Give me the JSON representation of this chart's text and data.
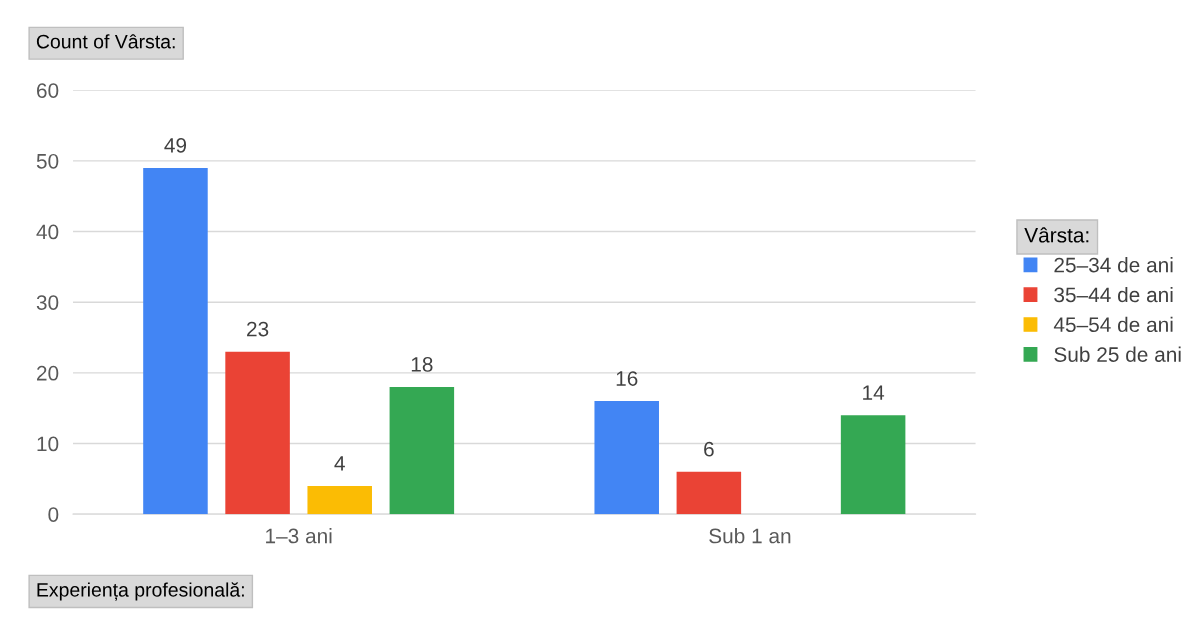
{
  "chart_data": {
    "type": "bar",
    "ylabel": "Count of Vârsta:",
    "xlabel": "Experiența profesională:",
    "legend_title": "Vârsta:",
    "categories": [
      "1–3 ani",
      "Sub 1 an"
    ],
    "series": [
      {
        "name": "25–34 de ani",
        "color": "#4285f4",
        "values": [
          49,
          16
        ]
      },
      {
        "name": "35–44 de ani",
        "color": "#ea4335",
        "values": [
          23,
          6
        ]
      },
      {
        "name": "45–54 de ani",
        "color": "#fbbc04",
        "values": [
          4,
          null
        ]
      },
      {
        "name": "Sub 25 de ani",
        "color": "#34a853",
        "values": [
          18,
          14
        ]
      }
    ],
    "ylim": [
      0,
      60
    ],
    "yticks": [
      0,
      10,
      20,
      30,
      40,
      50,
      60
    ],
    "grid": "y",
    "legend": "right",
    "data_labels": true
  }
}
